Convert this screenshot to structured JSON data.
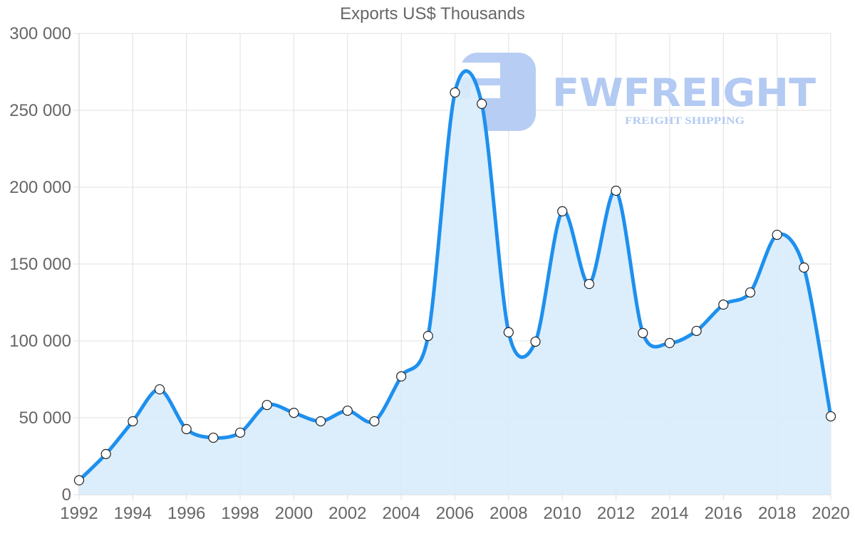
{
  "chart_data": {
    "type": "area",
    "title": "Exports US$ Thousands",
    "xlabel": "",
    "ylabel": "",
    "ylim": [
      0,
      300000
    ],
    "yticks": [
      0,
      50000,
      100000,
      150000,
      200000,
      250000,
      300000
    ],
    "ytick_labels": [
      "0",
      "50 000",
      "100 000",
      "150 000",
      "200 000",
      "250 000",
      "300 000"
    ],
    "xtick_labels": [
      "1992",
      "1994",
      "1996",
      "1998",
      "2000",
      "2002",
      "2004",
      "2006",
      "2008",
      "2010",
      "2012",
      "2014",
      "2016",
      "2018",
      "2020"
    ],
    "grid": true,
    "legend": "none",
    "x": [
      1992,
      1993,
      1994,
      1995,
      1996,
      1997,
      1998,
      1999,
      2000,
      2001,
      2002,
      2003,
      2004,
      2005,
      2006,
      2007,
      2008,
      2009,
      2010,
      2011,
      2012,
      2013,
      2014,
      2015,
      2016,
      2017,
      2018,
      2019,
      2020
    ],
    "series": [
      {
        "name": "Exports US$ Thousands",
        "values": [
          9300,
          26400,
          47700,
          68500,
          42600,
          37000,
          40300,
          58300,
          53200,
          47700,
          54600,
          47700,
          76900,
          103200,
          261600,
          254200,
          105600,
          99500,
          184300,
          137000,
          197700,
          105100,
          98600,
          106500,
          123600,
          131500,
          169000,
          147700,
          50900
        ]
      }
    ]
  },
  "colors": {
    "line": "#1e90ee",
    "fill": "#d8ecfc",
    "grid": "#e0e0e0",
    "point_fill": "#ffffff",
    "point_stroke": "#222222",
    "text": "#666666",
    "watermark": "#b3caf2"
  },
  "watermark": {
    "brand": "FWFREIGHT",
    "tagline": "FREIGHT SHIPPING"
  }
}
